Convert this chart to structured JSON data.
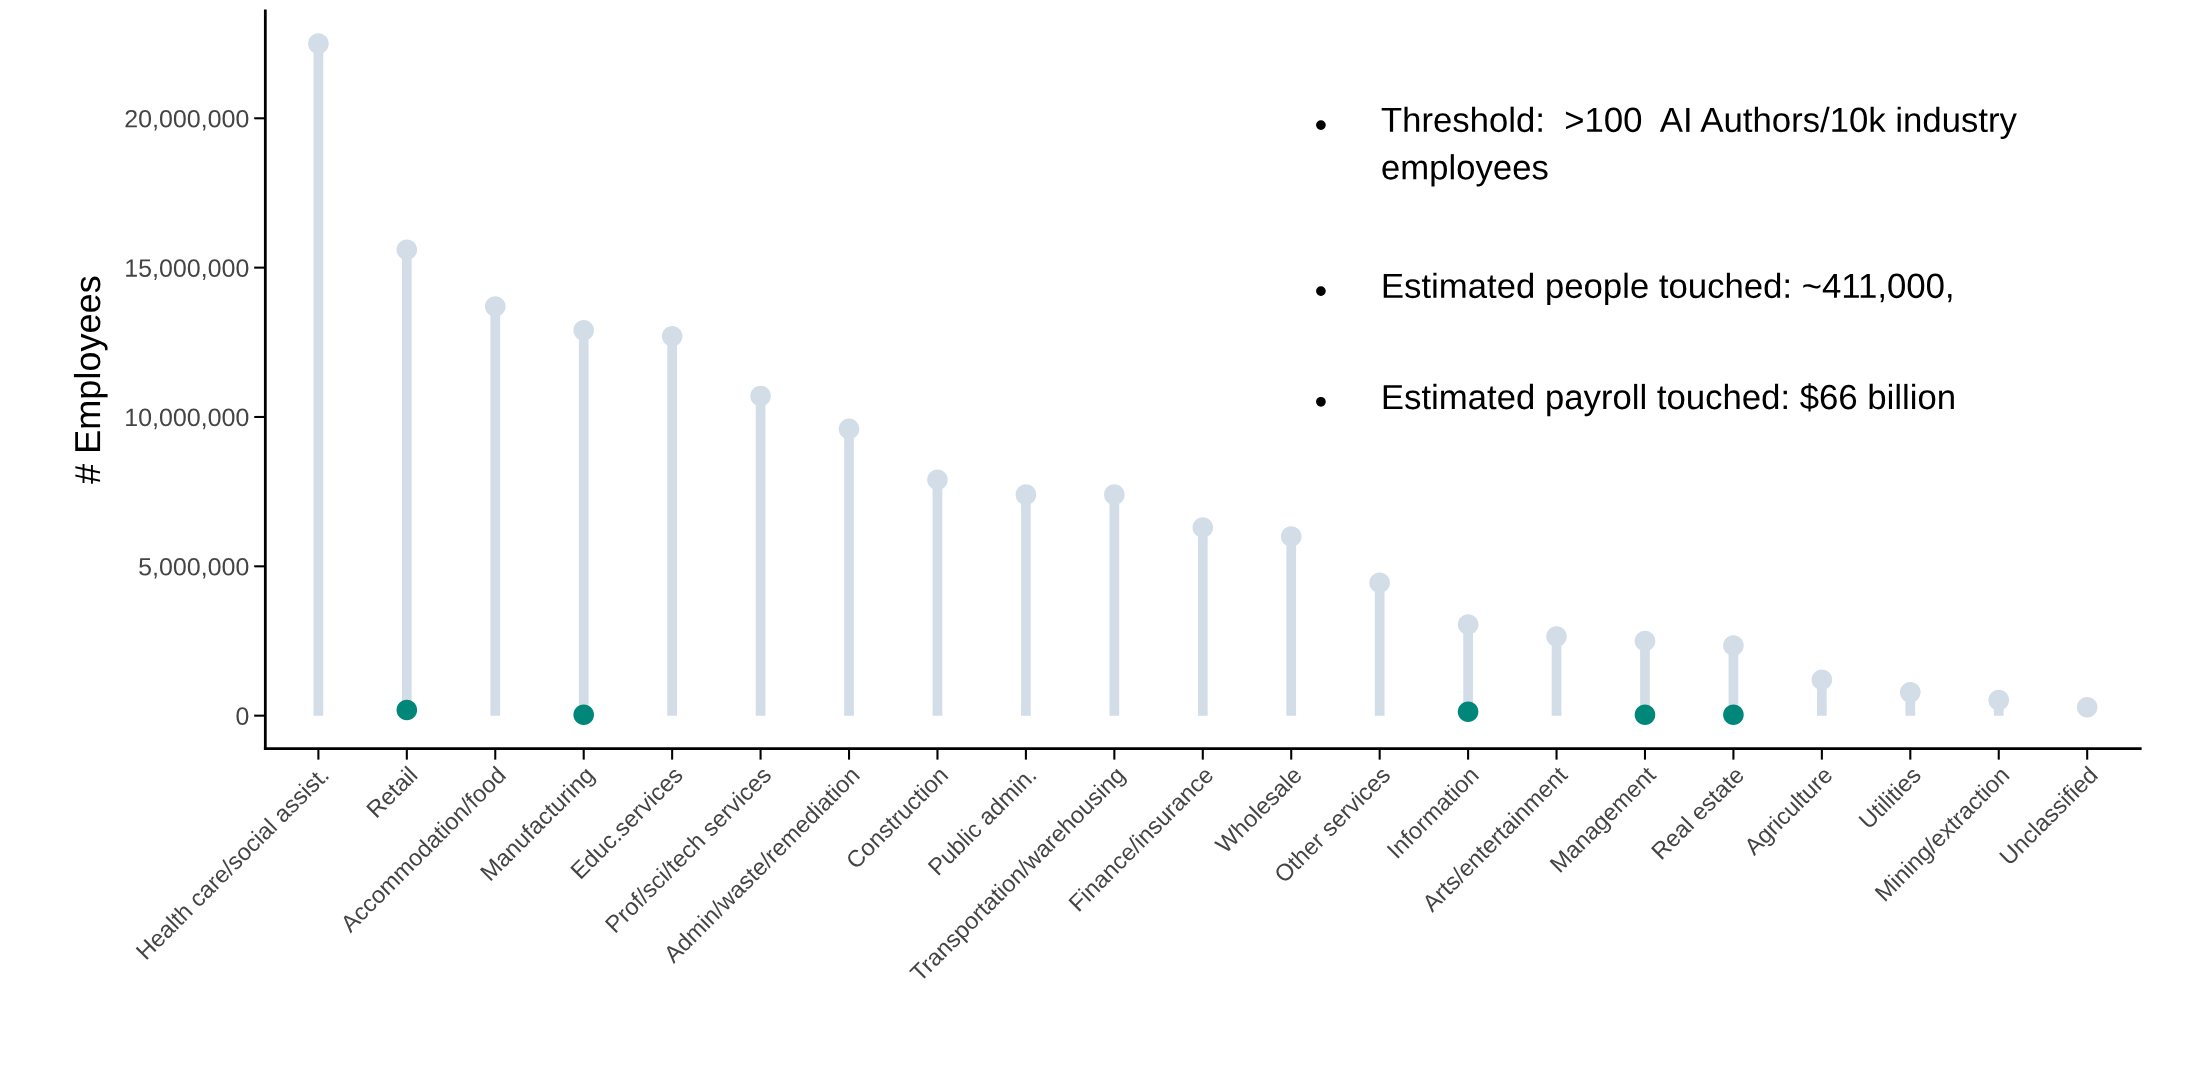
{
  "chart_data": {
    "type": "lollipop",
    "ylabel": "# Employees",
    "categories": [
      "Health care/social assist.",
      "Retail",
      "Accommodation/food",
      "Manufacturing",
      "Educ.services",
      "Prof/sci/tech services",
      "Admin/waste/remediation",
      "Construction",
      "Public admin.",
      "Transportation/warehousing",
      "Finance/insurance",
      "Wholesale",
      "Other services",
      "Information",
      "Arts/entertainment",
      "Management",
      "Real estate",
      "Agriculture",
      "Utilities",
      "Mining/extraction",
      "Unclassified"
    ],
    "series": [
      {
        "color": "#d3dde8",
        "values": [
          22500000,
          15600000,
          13700000,
          12900000,
          12700000,
          10700000,
          9600000,
          7900000,
          7400000,
          7400000,
          6300000,
          6000000,
          4450000,
          3050000,
          2650000,
          2500000,
          2350000,
          1200000,
          780000,
          520000,
          280000
        ]
      },
      {
        "type": "scatter",
        "color": "#00877a",
        "values": [
          null,
          190000,
          null,
          30000,
          null,
          null,
          null,
          null,
          null,
          null,
          null,
          null,
          null,
          130000,
          null,
          30000,
          30000,
          null,
          null,
          null,
          null
        ]
      }
    ],
    "ylim": [
      -1100000,
      23600000
    ],
    "yticks": [
      {
        "value": 0,
        "label": "0"
      },
      {
        "value": 5000000,
        "label": "5,000,000"
      },
      {
        "value": 10000000,
        "label": "10,000,000"
      },
      {
        "value": 15000000,
        "label": "15,000,000"
      },
      {
        "value": 20000000,
        "label": "20,000,000"
      }
    ],
    "legend": false,
    "annotations": [
      "Threshold:  >100  AI Authors/10k industry\nemployees",
      "Estimated people touched: ~411,000,",
      "Estimated payroll touched: $66 billion"
    ]
  }
}
